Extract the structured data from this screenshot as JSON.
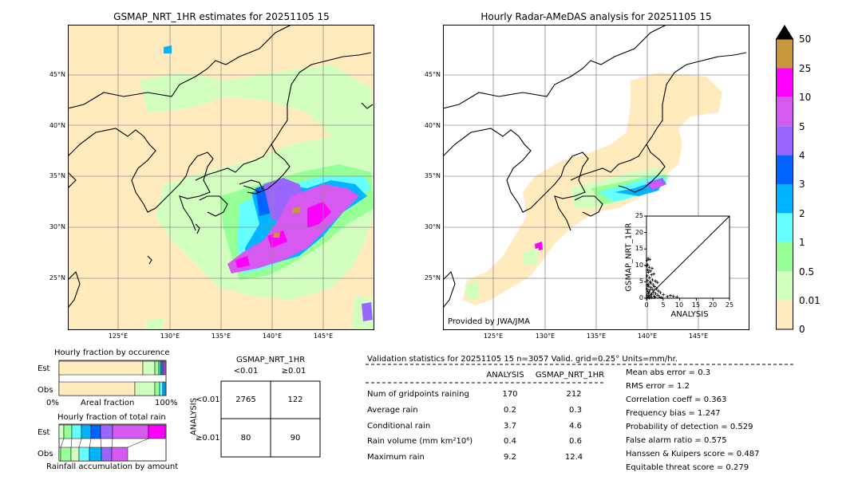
{
  "left_map": {
    "title": "GSMAP_NRT_1HR estimates for 20251105 15",
    "lat_labels": [
      "45°N",
      "40°N",
      "35°N",
      "30°N",
      "25°N"
    ],
    "lon_labels": [
      "125°E",
      "130°E",
      "135°E",
      "140°E",
      "145°E"
    ]
  },
  "right_map": {
    "title": "Hourly Radar-AMeDAS analysis for 20251105 15",
    "lat_labels": [
      "45°N",
      "40°N",
      "35°N",
      "30°N",
      "25°N"
    ],
    "lon_labels": [
      "125°E",
      "130°E",
      "135°E",
      "140°E",
      "145°E"
    ],
    "credit": "Provided by JWA/JMA"
  },
  "colorbar": {
    "labels": [
      "50",
      "25",
      "10",
      "5",
      "4",
      "3",
      "2",
      "1",
      "0.5",
      "0.01",
      "0"
    ],
    "colors": [
      "#c8963c",
      "#ff00ff",
      "#d75af0",
      "#9966ff",
      "#0064ff",
      "#00b4ff",
      "#66ffff",
      "#96ff96",
      "#d2ffc0",
      "#ffebbe"
    ]
  },
  "chart_data": [
    {
      "type": "scatter",
      "xlabel": "ANALYSIS",
      "ylabel": "GSMAP_NRT_1HR",
      "xlim": [
        0,
        25
      ],
      "ylim": [
        0,
        25
      ],
      "xticks": [
        "0",
        "5",
        "10",
        "15",
        "20",
        "25"
      ],
      "yticks": [
        "0",
        "5",
        "10",
        "15",
        "20",
        "25"
      ],
      "points": [
        [
          0.2,
          11.5
        ],
        [
          0.3,
          10.2
        ],
        [
          0.5,
          12.1
        ],
        [
          0.8,
          9.4
        ],
        [
          1.0,
          11.8
        ],
        [
          0.4,
          8.6
        ],
        [
          0.6,
          7.9
        ],
        [
          1.2,
          8.3
        ],
        [
          0.2,
          6.8
        ],
        [
          0.9,
          6.2
        ],
        [
          1.5,
          7.1
        ],
        [
          0.3,
          5.4
        ],
        [
          1.1,
          5.0
        ],
        [
          1.8,
          5.6
        ],
        [
          0.5,
          4.3
        ],
        [
          2.0,
          4.1
        ],
        [
          0.7,
          3.6
        ],
        [
          1.4,
          3.2
        ],
        [
          2.4,
          3.5
        ],
        [
          0.2,
          2.8
        ],
        [
          1.0,
          2.5
        ],
        [
          3.0,
          2.9
        ],
        [
          0.4,
          2.0
        ],
        [
          2.1,
          1.8
        ],
        [
          3.6,
          2.2
        ],
        [
          0.6,
          1.4
        ],
        [
          1.6,
          1.2
        ],
        [
          2.8,
          1.4
        ],
        [
          4.2,
          1.7
        ],
        [
          0.2,
          0.8
        ],
        [
          1.2,
          0.7
        ],
        [
          2.3,
          0.6
        ],
        [
          3.4,
          0.9
        ],
        [
          5.1,
          1.1
        ],
        [
          0.5,
          0.3
        ],
        [
          1.5,
          0.2
        ],
        [
          2.6,
          0.3
        ],
        [
          3.9,
          0.4
        ],
        [
          6.3,
          0.5
        ],
        [
          7.2,
          0.8
        ],
        [
          8.1,
          0.6
        ],
        [
          9.2,
          0.4
        ],
        [
          0.1,
          0.1
        ],
        [
          0.9,
          0.1
        ],
        [
          4.6,
          0.2
        ],
        [
          0.3,
          3.9
        ],
        [
          1.3,
          4.6
        ],
        [
          2.7,
          5.2
        ],
        [
          0.1,
          9.8
        ],
        [
          1.9,
          2.6
        ],
        [
          1.7,
          9.1
        ],
        [
          2.2,
          7.4
        ],
        [
          3.3,
          4.8
        ],
        [
          0.8,
          1.9
        ]
      ]
    },
    {
      "type": "bar",
      "title": "Hourly fraction by occurence",
      "categories": [
        "Est",
        "Obs"
      ],
      "xlabel": "Areal fraction",
      "xticks": [
        "0%",
        "100%"
      ]
    },
    {
      "type": "bar",
      "title": "Hourly fraction of total rain",
      "categories": [
        "Est",
        "Obs"
      ],
      "xlabel": "Rainfall accumulation by amount"
    },
    {
      "type": "table",
      "title": "GSMAP_NRT_1HR",
      "col_headers": [
        "<0.01",
        "≥0.01"
      ],
      "row_axis": "ANALYSIS",
      "row_headers": [
        "<0.01",
        "≥0.01"
      ],
      "cells": [
        [
          "2765",
          "122"
        ],
        [
          "80",
          "90"
        ]
      ]
    }
  ],
  "validation": {
    "header": "Validation statistics for 20251105 15  n=3057 Valid. grid=0.25° Units=mm/hr.",
    "col_analysis": "ANALYSIS",
    "col_gsmap": "GSMAP_NRT_1HR",
    "rows": [
      {
        "label": "Num of gridpoints raining",
        "a": "170",
        "g": "212"
      },
      {
        "label": "Average rain",
        "a": "0.2",
        "g": "0.3"
      },
      {
        "label": "Conditional rain",
        "a": "3.7",
        "g": "4.6"
      },
      {
        "label": "Rain volume (mm km²10⁶)",
        "a": "0.4",
        "g": "0.6"
      },
      {
        "label": "Maximum rain",
        "a": "9.2",
        "g": "12.4"
      }
    ],
    "scores": [
      "Mean abs error =    0.3",
      "RMS error =    1.2",
      "Correlation coeff =  0.363",
      "Frequency bias =  1.247",
      "Probability of detection =  0.529",
      "False alarm ratio =  0.575",
      "Hanssen & Kuipers score =  0.487",
      "Equitable threat score =  0.279"
    ]
  }
}
